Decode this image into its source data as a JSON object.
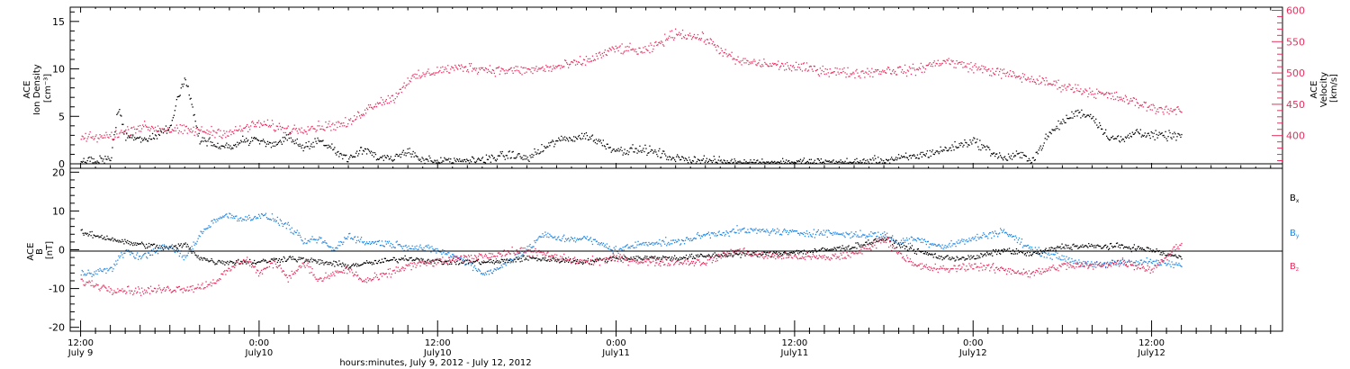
{
  "colors": {
    "black": "#000000",
    "pink": "#e8305f",
    "blue": "#1f86e6"
  },
  "x_axis": {
    "time_ticks": [
      "12:00",
      "0:00",
      "12:00",
      "0:00",
      "12:00",
      "0:00",
      "12:00"
    ],
    "date_ticks": [
      "July 9",
      "July10",
      "July10",
      "July11",
      "July11",
      "July12",
      "July12"
    ],
    "title": "hours:minutes, July  9, 2012 - July 12, 2012"
  },
  "chart_data": [
    {
      "type": "scatter",
      "panel": "top",
      "xrange_hours": [
        -0.7,
        80.8
      ],
      "left_axis": {
        "label_lines": [
          "ACE",
          "Ion Density",
          "[cm⁻³]"
        ],
        "range": [
          0,
          16.5
        ],
        "ticks": [
          "0",
          "5",
          "10",
          "15"
        ],
        "tick_values": [
          0,
          5,
          10,
          15
        ]
      },
      "right_axis": {
        "label_lines": [
          "ACE",
          "Velocity",
          "[km/s]"
        ],
        "range": [
          355,
          605
        ],
        "ticks": [
          "400",
          "450",
          "500",
          "550",
          "600"
        ],
        "tick_values": [
          400,
          450,
          500,
          550,
          600
        ]
      },
      "series": [
        {
          "name": "Ion Density",
          "color": "black",
          "axis": "left",
          "key_hours": [
            0,
            2,
            2.5,
            3,
            4,
            5,
            6,
            6.5,
            7,
            8,
            9,
            10,
            11,
            12,
            13,
            14,
            15,
            16,
            17,
            18,
            19,
            20,
            21,
            22,
            23,
            24,
            25,
            26,
            27,
            28,
            29,
            30,
            32,
            34,
            36,
            38,
            40,
            42,
            44,
            46,
            48,
            50,
            52,
            54,
            56,
            58,
            60,
            61,
            62,
            63,
            64,
            65,
            66,
            67,
            68,
            69,
            70,
            71,
            72,
            73,
            74
          ],
          "key_values": [
            0.3,
            0.5,
            6,
            3,
            2.5,
            3,
            4,
            7,
            9,
            2.5,
            2.2,
            1.8,
            2.5,
            2.5,
            2,
            2.8,
            1.8,
            2.6,
            1.5,
            0.6,
            1.8,
            0.6,
            0.5,
            1.5,
            0.4,
            0.3,
            0.3,
            0.4,
            0.5,
            0.8,
            1,
            0.6,
            2.5,
            3,
            1.5,
            1.5,
            0.6,
            0.4,
            0.2,
            0.2,
            0.2,
            0.2,
            0.2,
            0.4,
            0.8,
            1.5,
            2.5,
            1.5,
            0.6,
            1,
            0.5,
            3,
            4.5,
            5.5,
            5,
            3,
            2.5,
            3.5,
            3,
            3,
            3
          ],
          "noise": 0.7
        },
        {
          "name": "Velocity",
          "color": "pink",
          "axis": "right",
          "key_hours": [
            0,
            2,
            4,
            6,
            8,
            10,
            12,
            14,
            16,
            18,
            19,
            20,
            21,
            22,
            24,
            26,
            28,
            30,
            32,
            34,
            36,
            38,
            40,
            42,
            44,
            46,
            48,
            50,
            52,
            54,
            56,
            58,
            60,
            62,
            64,
            66,
            68,
            70,
            72,
            74
          ],
          "key_values": [
            396,
            400,
            415,
            410,
            408,
            405,
            420,
            410,
            415,
            420,
            440,
            455,
            460,
            490,
            505,
            510,
            505,
            505,
            510,
            520,
            540,
            535,
            565,
            555,
            520,
            515,
            510,
            505,
            500,
            505,
            505,
            520,
            510,
            500,
            490,
            480,
            470,
            460,
            445,
            440
          ],
          "noise": 12
        }
      ]
    },
    {
      "type": "scatter",
      "panel": "bottom",
      "xrange_hours": [
        -0.7,
        80.8
      ],
      "left_axis": {
        "label_lines": [
          "ACE",
          "B",
          "[nT]"
        ],
        "range": [
          -21,
          21
        ],
        "ticks": [
          "20",
          "10",
          "0",
          "-10",
          "-20"
        ],
        "tick_values": [
          20,
          10,
          0,
          -10,
          -20
        ]
      },
      "legend": [
        "Bx",
        "By",
        "Bz"
      ],
      "legend_placement": "right",
      "series": [
        {
          "name": "Bx",
          "color": "black",
          "key_hours": [
            0,
            2,
            3,
            4,
            5,
            6,
            7,
            8,
            9,
            10,
            12,
            14,
            16,
            18,
            20,
            22,
            24,
            26,
            28,
            30,
            32,
            34,
            36,
            38,
            40,
            42,
            44,
            46,
            48,
            50,
            52,
            54,
            56,
            58,
            60,
            62,
            64,
            66,
            68,
            70,
            72,
            74
          ],
          "key_values": [
            4.5,
            3,
            2,
            1.5,
            1,
            0.5,
            1.5,
            -2,
            -3,
            -3,
            -3,
            -2,
            -3,
            -4,
            -3,
            -2,
            -3,
            -3,
            -3,
            -2,
            -2.5,
            -3,
            -2,
            -2,
            -2,
            -1.5,
            -1,
            -1,
            -0.5,
            0,
            1,
            3,
            0,
            -2,
            -2,
            0,
            -1,
            1,
            1,
            1,
            0,
            -2
          ],
          "noise": 1.1
        },
        {
          "name": "By",
          "color": "blue",
          "key_hours": [
            0,
            2,
            3,
            4,
            5,
            6,
            7,
            8,
            9,
            10,
            11,
            12,
            13,
            14,
            15,
            16,
            17,
            18,
            19,
            20,
            22,
            24,
            26,
            27,
            28,
            29,
            30,
            31,
            32,
            34,
            36,
            38,
            40,
            42,
            44,
            46,
            48,
            50,
            52,
            54,
            55,
            56,
            58,
            60,
            62,
            64,
            66,
            68,
            70,
            72,
            74
          ],
          "key_values": [
            -6,
            -5,
            0,
            -2,
            0,
            1,
            -2,
            4,
            8,
            9,
            8,
            9,
            8,
            6,
            2,
            3,
            0,
            4,
            2,
            2,
            1,
            0,
            -3,
            -6,
            -5,
            -2,
            0,
            4,
            3,
            3,
            0,
            2,
            2,
            4,
            5,
            5,
            4.5,
            4.5,
            4,
            4,
            2,
            3,
            1,
            3,
            5,
            0,
            -2,
            -4,
            -3,
            -3,
            -4
          ],
          "noise": 1.4
        },
        {
          "name": "Bz",
          "color": "pink",
          "key_hours": [
            0,
            2,
            4,
            6,
            8,
            9,
            10,
            11,
            12,
            13,
            14,
            15,
            16,
            17,
            18,
            19,
            20,
            22,
            24,
            26,
            28,
            30,
            32,
            34,
            36,
            38,
            40,
            42,
            44,
            46,
            48,
            50,
            52,
            54,
            56,
            58,
            60,
            62,
            64,
            66,
            68,
            70,
            72,
            74
          ],
          "key_values": [
            -8,
            -10,
            -10.5,
            -10,
            -9.5,
            -8,
            -5,
            -2,
            -6,
            -3,
            -7,
            -3,
            -8,
            -6,
            -5,
            -8,
            -7,
            -4,
            -3,
            -2,
            -1,
            0,
            -2,
            -3,
            -2,
            -3,
            -3,
            -3,
            0,
            -1.5,
            -1.5,
            -2,
            -1,
            3,
            -4,
            -5,
            -4,
            -5,
            -6,
            -4,
            -4,
            -3,
            -5,
            2
          ],
          "noise": 1.6
        }
      ]
    }
  ]
}
